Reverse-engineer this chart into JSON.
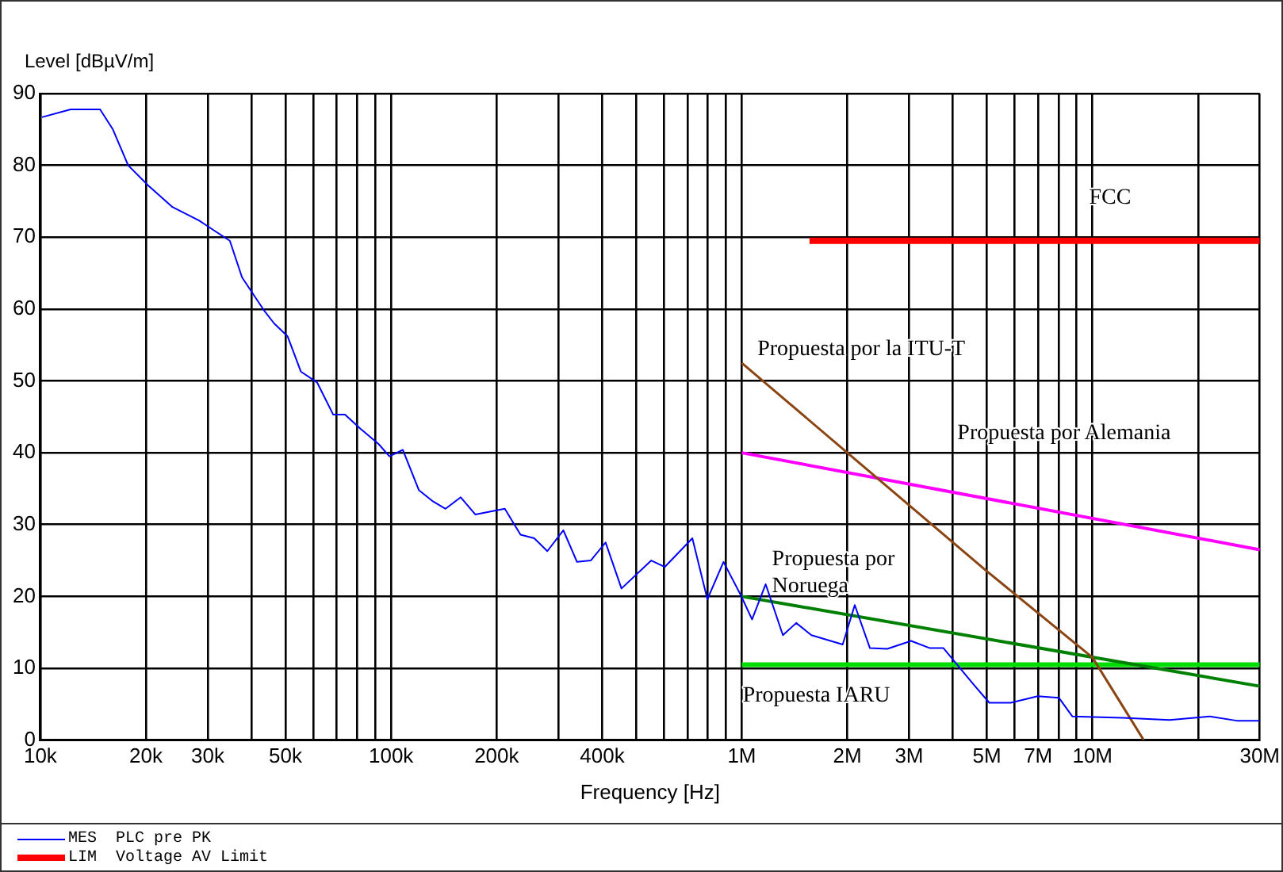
{
  "chart_data": {
    "type": "line",
    "xlabel": "Frequency [Hz]",
    "ylabel": "Level [dBµV/m]",
    "log": "x",
    "grid": true,
    "legend": "bottom",
    "marker": "none",
    "line_style": "solid",
    "xlim": [
      10000,
      30000000
    ],
    "ylim": [
      0,
      90
    ],
    "xticks": [
      {
        "value": 10000,
        "label": "10k"
      },
      {
        "value": 20000,
        "label": "20k"
      },
      {
        "value": 30000,
        "label": "30k"
      },
      {
        "value": 40000,
        "label": null
      },
      {
        "value": 50000,
        "label": "50k"
      },
      {
        "value": 60000,
        "label": null
      },
      {
        "value": 70000,
        "label": null
      },
      {
        "value": 80000,
        "label": null
      },
      {
        "value": 90000,
        "label": null
      },
      {
        "value": 100000,
        "label": "100k"
      },
      {
        "value": 200000,
        "label": "200k"
      },
      {
        "value": 300000,
        "label": null
      },
      {
        "value": 400000,
        "label": "400k"
      },
      {
        "value": 500000,
        "label": null
      },
      {
        "value": 600000,
        "label": null
      },
      {
        "value": 700000,
        "label": null
      },
      {
        "value": 800000,
        "label": null
      },
      {
        "value": 900000,
        "label": null
      },
      {
        "value": 1000000,
        "label": "1M"
      },
      {
        "value": 2000000,
        "label": "2M"
      },
      {
        "value": 3000000,
        "label": "3M"
      },
      {
        "value": 4000000,
        "label": null
      },
      {
        "value": 5000000,
        "label": "5M"
      },
      {
        "value": 6000000,
        "label": null
      },
      {
        "value": 7000000,
        "label": "7M"
      },
      {
        "value": 8000000,
        "label": null
      },
      {
        "value": 9000000,
        "label": null
      },
      {
        "value": 10000000,
        "label": "10M"
      },
      {
        "value": 20000000,
        "label": null
      },
      {
        "value": 30000000,
        "label": "30M"
      }
    ],
    "yticks": [
      0,
      10,
      20,
      30,
      40,
      50,
      60,
      70,
      80,
      90
    ],
    "series": [
      {
        "name": "MES  PLC pre PK",
        "color": "#0000ff",
        "x": [
          10100,
          12200,
          14800,
          16100,
          17800,
          20300,
          23800,
          28400,
          31600,
          34700,
          37600,
          43300,
          46400,
          50700,
          55300,
          61500,
          68400,
          73900,
          81500,
          92200,
          98900,
          108000,
          120000,
          131000,
          143000,
          158000,
          174000,
          211000,
          234000,
          256000,
          279000,
          310000,
          339000,
          371000,
          409000,
          454000,
          552000,
          603000,
          723000,
          798000,
          887000,
          993000,
          1070000,
          1170000,
          1310000,
          1430000,
          1580000,
          1940000,
          2100000,
          2320000,
          2600000,
          3040000,
          3440000,
          3760000,
          4570000,
          5080000,
          5850000,
          6980000,
          8020000,
          8760000,
          12200000,
          16600000,
          21600000,
          25800000,
          30000000
        ],
        "values": [
          86.7,
          87.8,
          87.8,
          85,
          80,
          77.2,
          74.2,
          72.3,
          70.8,
          69.5,
          64.4,
          59.9,
          58,
          56.2,
          51.3,
          49.8,
          45.3,
          45.3,
          43.4,
          41.2,
          39.5,
          40.4,
          34.8,
          33.3,
          32.2,
          33.8,
          31.4,
          32.2,
          28.6,
          28.1,
          26.3,
          29.2,
          24.8,
          25,
          27.5,
          21.1,
          25,
          24.1,
          28.1,
          19.6,
          24.8,
          20.2,
          16.8,
          21.7,
          14.6,
          16.3,
          14.6,
          13.3,
          18.8,
          12.8,
          12.7,
          13.8,
          12.8,
          12.8,
          7.8,
          5.2,
          5.2,
          6.1,
          5.9,
          3.3,
          3.1,
          2.8,
          3.3,
          2.7,
          2.7
        ]
      },
      {
        "name": "LIM  Voltage AV Limit",
        "color": "#ff0000",
        "x": [
          1560000,
          30000000
        ],
        "values": [
          69.5,
          69.5
        ]
      },
      {
        "name": "Propuesta por la ITU-T",
        "color": "#8b4513",
        "x": [
          1000000,
          2000000,
          5000000,
          10000000,
          14000000
        ],
        "values": [
          52.5,
          40,
          23.5,
          11.5,
          0
        ]
      },
      {
        "name": "Propuesta por Alemania",
        "color": "#ff00ff",
        "x": [
          1000000,
          30000000
        ],
        "values": [
          40,
          26.5
        ]
      },
      {
        "name": "Propuesta por Noruega",
        "color": "#008000",
        "x": [
          1000000,
          30000000
        ],
        "values": [
          20,
          7.5
        ]
      },
      {
        "name": "Propuesta IARU",
        "color": "#00dd00",
        "x": [
          1000000,
          30000000
        ],
        "values": [
          10.5,
          10.5
        ]
      }
    ],
    "annotations": [
      "FCC"
    ]
  }
}
